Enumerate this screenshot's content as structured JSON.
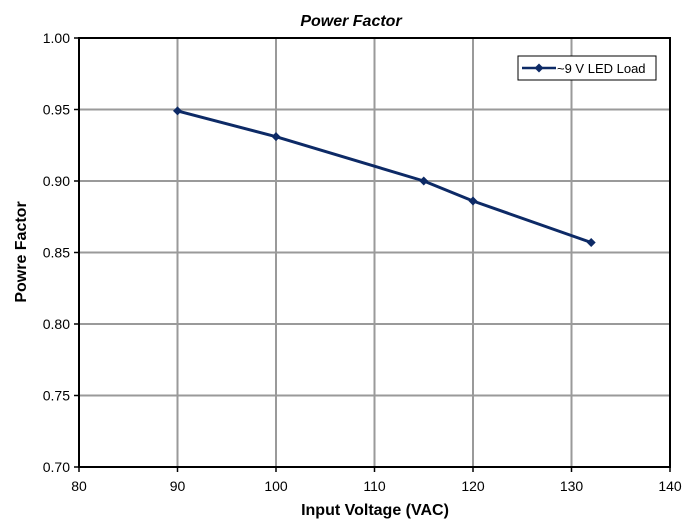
{
  "chart_data": {
    "type": "line",
    "title": "Power Factor",
    "xlabel": "Input Voltage (VAC)",
    "ylabel": "Powre Factor",
    "xlim": [
      80,
      140
    ],
    "ylim": [
      0.7,
      1.0
    ],
    "xticks": [
      "80",
      "90",
      "100",
      "110",
      "120",
      "130",
      "140"
    ],
    "yticks": [
      "0.70",
      "0.75",
      "0.80",
      "0.85",
      "0.90",
      "0.95",
      "1.00"
    ],
    "grid": true,
    "legend_position": "top-right",
    "series": [
      {
        "name": "~9 V LED Load",
        "color": "#0d2a66",
        "x": [
          90,
          100,
          115,
          120,
          132
        ],
        "y": [
          0.949,
          0.931,
          0.9,
          0.886,
          0.857
        ]
      }
    ]
  }
}
